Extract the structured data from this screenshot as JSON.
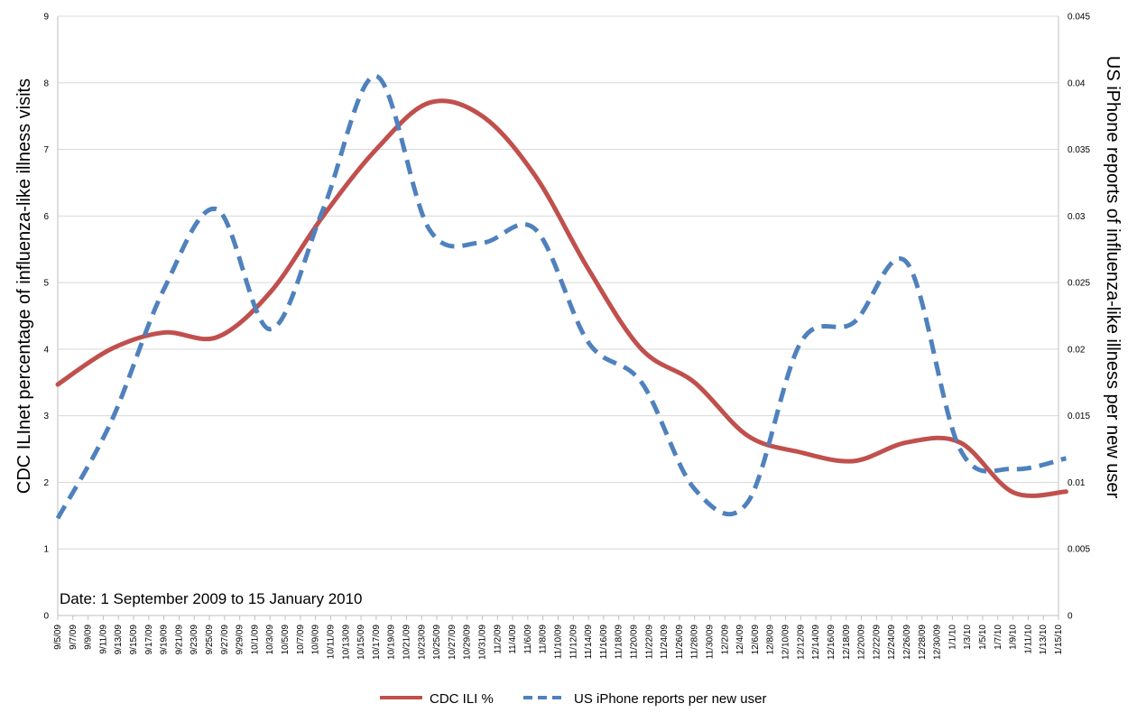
{
  "chart_data": {
    "type": "line",
    "annotation": "Date: 1 September 2009 to 15 January 2010",
    "ylabel_left": "CDC ILInet percentage of influenza-like illness visits",
    "ylabel_right": "US iPhone reports of influenza-like illness per new user",
    "ylim_left": [
      0,
      9
    ],
    "ylim_right": [
      0,
      0.045
    ],
    "yticks_left": [
      "0",
      "1",
      "2",
      "3",
      "4",
      "5",
      "6",
      "7",
      "8",
      "9"
    ],
    "yticks_right": [
      "0",
      "0.005",
      "0.01",
      "0.015",
      "0.02",
      "0.025",
      "0.03",
      "0.035",
      "0.04",
      "0.045"
    ],
    "grid": true,
    "legend_position": "bottom",
    "x": [
      "9/5/09",
      "9/7/09",
      "9/9/09",
      "9/11/09",
      "9/13/09",
      "9/15/09",
      "9/17/09",
      "9/19/09",
      "9/21/09",
      "9/23/09",
      "9/25/09",
      "9/27/09",
      "9/29/09",
      "10/1/09",
      "10/3/09",
      "10/5/09",
      "10/7/09",
      "10/9/09",
      "10/11/09",
      "10/13/09",
      "10/15/09",
      "10/17/09",
      "10/19/09",
      "10/21/09",
      "10/23/09",
      "10/25/09",
      "10/27/09",
      "10/29/09",
      "10/31/09",
      "11/2/09",
      "11/4/09",
      "11/6/09",
      "11/8/09",
      "11/10/09",
      "11/12/09",
      "11/14/09",
      "11/16/09",
      "11/18/09",
      "11/20/09",
      "11/22/09",
      "11/24/09",
      "11/26/09",
      "11/28/09",
      "11/30/09",
      "12/2/09",
      "12/4/09",
      "12/6/09",
      "12/8/09",
      "12/10/09",
      "12/12/09",
      "12/14/09",
      "12/16/09",
      "12/18/09",
      "12/20/09",
      "12/22/09",
      "12/24/09",
      "12/26/09",
      "12/28/09",
      "12/30/09",
      "1/1/10",
      "1/3/10",
      "1/5/10",
      "1/7/10",
      "1/9/10",
      "1/11/10",
      "1/13/10",
      "1/15/10"
    ],
    "series": [
      {
        "name": "CDC ILI %",
        "axis": "left",
        "color": "#c0504d",
        "style": "solid",
        "points": [
          [
            "9/5/09",
            3.47
          ],
          [
            "9/12/09",
            4.0
          ],
          [
            "9/19/09",
            4.25
          ],
          [
            "9/26/09",
            4.18
          ],
          [
            "10/3/09",
            4.85
          ],
          [
            "10/10/09",
            6.0
          ],
          [
            "10/17/09",
            7.0
          ],
          [
            "10/24/09",
            7.7
          ],
          [
            "10/31/09",
            7.5
          ],
          [
            "11/7/09",
            6.6
          ],
          [
            "11/14/09",
            5.2
          ],
          [
            "11/21/09",
            4.0
          ],
          [
            "11/28/09",
            3.5
          ],
          [
            "12/5/09",
            2.7
          ],
          [
            "12/12/09",
            2.45
          ],
          [
            "12/19/09",
            2.32
          ],
          [
            "12/26/09",
            2.6
          ],
          [
            "1/2/10",
            2.6
          ],
          [
            "1/9/10",
            1.85
          ],
          [
            "1/16/10",
            1.86
          ]
        ]
      },
      {
        "name": "US iPhone reports per new user",
        "axis": "right",
        "color": "#4f81bd",
        "style": "dashed",
        "points": [
          [
            "9/5/09",
            0.0073
          ],
          [
            "9/12/09",
            0.0145
          ],
          [
            "9/19/09",
            0.0245
          ],
          [
            "9/26/09",
            0.0305
          ],
          [
            "10/3/09",
            0.0215
          ],
          [
            "10/10/09",
            0.0305
          ],
          [
            "10/17/09",
            0.0405
          ],
          [
            "10/24/09",
            0.029
          ],
          [
            "10/31/09",
            0.028
          ],
          [
            "11/7/09",
            0.029
          ],
          [
            "11/14/09",
            0.0205
          ],
          [
            "11/21/09",
            0.0175
          ],
          [
            "11/28/09",
            0.0095
          ],
          [
            "12/5/09",
            0.0085
          ],
          [
            "12/12/09",
            0.0205
          ],
          [
            "12/19/09",
            0.022
          ],
          [
            "12/26/09",
            0.0265
          ],
          [
            "1/2/10",
            0.0125
          ],
          [
            "1/9/10",
            0.011
          ],
          [
            "1/16/10",
            0.0118
          ]
        ]
      }
    ]
  }
}
